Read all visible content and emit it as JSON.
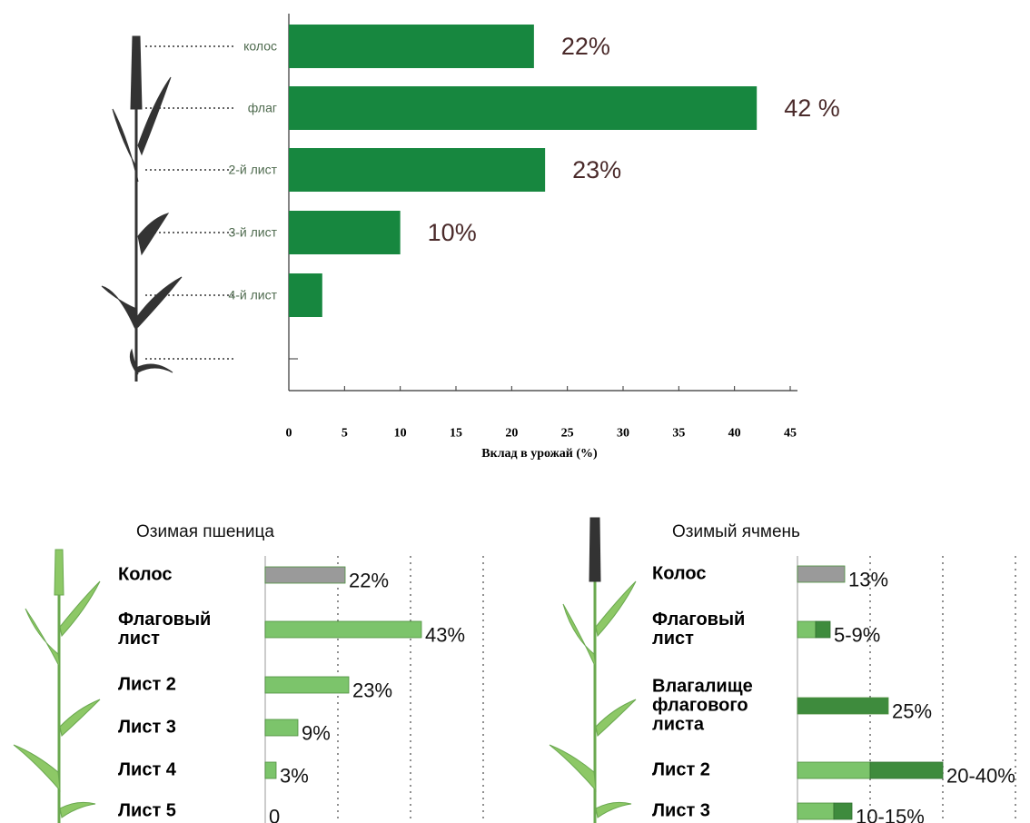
{
  "chart_data": [
    {
      "type": "bar",
      "orientation": "horizontal",
      "categories": [
        "колос",
        "флаг",
        "2-й лист",
        "3-й лист",
        "4-й лист",
        null
      ],
      "values": [
        22,
        42,
        23,
        10,
        3,
        null
      ],
      "value_labels": [
        "22%",
        "42 %",
        "23%",
        "10%",
        null,
        null
      ],
      "color": "#17873f",
      "xlim": [
        0,
        45
      ],
      "xticks": [
        0,
        5,
        10,
        15,
        20,
        25,
        30,
        35,
        40,
        45
      ],
      "xlabel": "Вклад в урожай (%)"
    },
    {
      "type": "bar",
      "orientation": "horizontal",
      "title": "Озимая пшеница",
      "categories": [
        "Колос",
        "Флаговый лист",
        "Лист 2",
        "Лист 3",
        "Лист 4",
        "Лист 5"
      ],
      "values": [
        22,
        43,
        23,
        9,
        3,
        0
      ],
      "value_labels": [
        "22%",
        "43%",
        "23%",
        "9%",
        "3%",
        "0"
      ],
      "colors": [
        "#9a9a9a",
        "#7cc46b",
        "#7cc46b",
        "#7cc46b",
        "#7cc46b",
        "#7cc46b"
      ],
      "xlim": [
        0,
        60
      ],
      "xticks": [
        20,
        40,
        60
      ],
      "grid": true,
      "tick_labels": false
    },
    {
      "type": "bar",
      "orientation": "horizontal",
      "title": "Озимый ячмень",
      "categories": [
        "Колос",
        "Флаговый лист",
        "Влагалище флагового листа",
        "Лист 2",
        "Лист 3"
      ],
      "values": [
        13,
        [
          5,
          9
        ],
        25,
        [
          20,
          40
        ],
        [
          10,
          15
        ]
      ],
      "value_labels": [
        "13%",
        "5-9%",
        "25%",
        "20-40%",
        "10-15%"
      ],
      "colors": [
        "#9a9a9a",
        "#7cc46b",
        "#3e8b3d",
        "#7cc46b",
        "#7cc46b"
      ],
      "range_color": "#3e8b3d",
      "xlim": [
        0,
        60
      ],
      "xticks": [
        20,
        40,
        60
      ],
      "grid": true,
      "tick_labels": false
    }
  ]
}
